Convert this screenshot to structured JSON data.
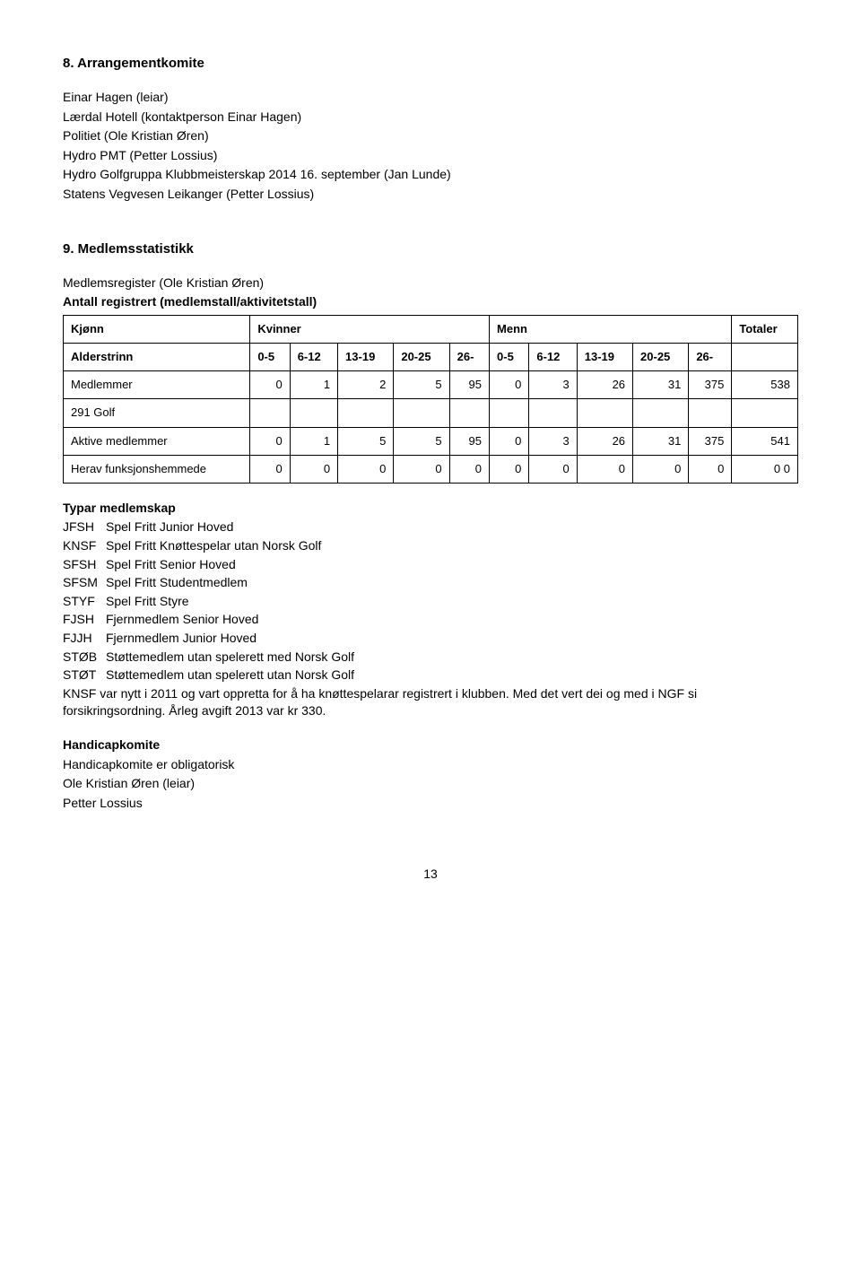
{
  "section8": {
    "heading": "8. Arrangementkomite",
    "lines": [
      "Einar Hagen (leiar)",
      "Lærdal Hotell (kontaktperson Einar Hagen)",
      "Politiet (Ole Kristian Øren)",
      "Hydro PMT (Petter Lossius)",
      "Hydro Golfgruppa Klubbmeisterskap 2014 16. september (Jan Lunde)",
      "Statens Vegvesen Leikanger (Petter Lossius)"
    ]
  },
  "section9": {
    "heading": "9. Medlemsstatistikk",
    "subline": "Medlemsregister (Ole Kristian Øren)",
    "table_title": "Antall registrert (medlemstall/aktivitetstall)",
    "kjonn_label": "Kjønn",
    "kvinner_label": "Kvinner",
    "menn_label": "Menn",
    "totaler_label": "Totaler",
    "alderstrinn_label": "Alderstrinn",
    "age_cols": [
      "0-5",
      "6-12",
      "13-19",
      "20-25",
      "26-",
      "0-5",
      "6-12",
      "13-19",
      "20-25",
      "26-"
    ],
    "rows": [
      {
        "label": "Medlemmer",
        "vals": [
          "0",
          "1",
          "2",
          "5",
          "95",
          "0",
          "3",
          "26",
          "31",
          "375"
        ],
        "total": "538"
      },
      {
        "label": "291 Golf",
        "vals": [
          "",
          "",
          "",
          "",
          "",
          "",
          "",
          "",
          "",
          ""
        ],
        "total": ""
      },
      {
        "label": "Aktive medlemmer",
        "vals": [
          "0",
          "1",
          "5",
          "5",
          "95",
          "0",
          "3",
          "26",
          "31",
          "375"
        ],
        "total": "541"
      },
      {
        "label": "Herav funksjonshemmede",
        "vals": [
          "0",
          "0",
          "0",
          "0",
          "0",
          "0",
          "0",
          "0",
          "0",
          "0"
        ],
        "total": "0 0"
      }
    ],
    "typar_heading": "Typar medlemskap",
    "typar": [
      {
        "code": "JFSH",
        "desc": "Spel Fritt Junior Hoved"
      },
      {
        "code": "KNSF",
        "desc": "Spel Fritt Knøttespelar utan Norsk Golf"
      },
      {
        "code": "SFSH",
        "desc": "Spel Fritt Senior Hoved"
      },
      {
        "code": "SFSM",
        "desc": "Spel Fritt Studentmedlem"
      },
      {
        "code": "STYF",
        "desc": "Spel Fritt Styre"
      },
      {
        "code": "FJSH",
        "desc": "Fjernmedlem Senior Hoved"
      },
      {
        "code": "FJJH",
        "desc": "Fjernmedlem Junior Hoved"
      },
      {
        "code": "STØB",
        "desc": "Støttemedlem utan spelerett med Norsk Golf"
      },
      {
        "code": "STØT",
        "desc": "Støttemedlem utan spelerett utan Norsk Golf"
      }
    ],
    "paragraph": "KNSF var nytt i 2011 og vart oppretta for å ha knøttespelarar registrert i klubben. Med det vert dei og med i NGF si forsikringsordning. Årleg avgift 2013 var kr 330.",
    "handicap_heading": "Handicapkomite",
    "handicap_lines": [
      "Handicapkomite er obligatorisk",
      "Ole Kristian Øren (leiar)",
      "Petter Lossius"
    ]
  },
  "page_number": "13"
}
